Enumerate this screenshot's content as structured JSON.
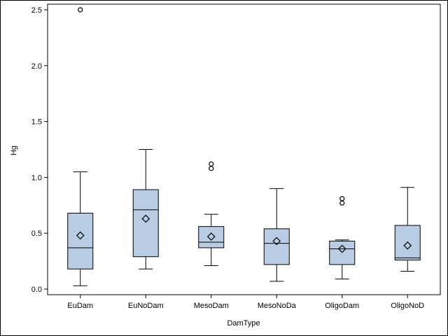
{
  "chart_data": {
    "type": "boxplot",
    "xlabel": "DamType",
    "ylabel": "Hg",
    "ylim": [
      -0.05,
      2.55
    ],
    "yticks": [
      "0.0",
      "0.5",
      "1.0",
      "1.5",
      "2.0",
      "2.5"
    ],
    "grid": false,
    "colors": {
      "box_fill": "#b8cce4",
      "box_stroke": "#000000",
      "axis": "#000000",
      "frame": "#000000"
    },
    "categories": [
      "EuDam",
      "EuNoDam",
      "MesoDam",
      "MesoNoDa",
      "OligoDam",
      "OligoNoD"
    ],
    "boxes": [
      {
        "category": "EuDam",
        "whisker_low": 0.03,
        "q1": 0.18,
        "median": 0.37,
        "q3": 0.68,
        "whisker_high": 1.05,
        "mean": 0.48,
        "outliers": [
          2.5
        ]
      },
      {
        "category": "EuNoDam",
        "whisker_low": 0.18,
        "q1": 0.29,
        "median": 0.71,
        "q3": 0.89,
        "whisker_high": 1.25,
        "mean": 0.63,
        "outliers": []
      },
      {
        "category": "MesoDam",
        "whisker_low": 0.21,
        "q1": 0.37,
        "median": 0.42,
        "q3": 0.56,
        "whisker_high": 0.67,
        "mean": 0.47,
        "outliers": [
          1.08,
          1.12
        ]
      },
      {
        "category": "MesoNoDa",
        "whisker_low": 0.07,
        "q1": 0.22,
        "median": 0.41,
        "q3": 0.54,
        "whisker_high": 0.9,
        "mean": 0.43,
        "outliers": []
      },
      {
        "category": "OligoDam",
        "whisker_low": 0.09,
        "q1": 0.22,
        "median": 0.36,
        "q3": 0.43,
        "whisker_high": 0.44,
        "mean": 0.36,
        "outliers": [
          0.77,
          0.81
        ]
      },
      {
        "category": "OligoNoD",
        "whisker_low": 0.16,
        "q1": 0.26,
        "median": 0.28,
        "q3": 0.57,
        "whisker_high": 0.91,
        "mean": 0.39,
        "outliers": []
      }
    ]
  }
}
